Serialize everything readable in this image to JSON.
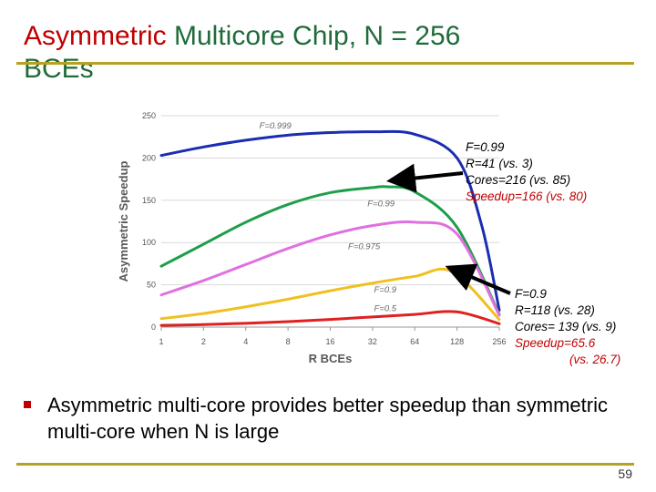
{
  "slide": {
    "title_part1": "Asymmetric",
    "title_part2": " Multicore Chip, N = 256",
    "title_part3": "BCEs",
    "bullet": "Asymmetric multi-core provides better speedup than symmetric multi-core when N is large",
    "page_number": "59"
  },
  "annotations": {
    "f099": {
      "line1": "F=0.99",
      "line2": "R=41 (vs. 3)",
      "line3": "Cores=216 (vs. 85)",
      "line4": "Speedup=166 (vs. 80)"
    },
    "f09": {
      "line1": "F=0.9",
      "line2": "R=118 (vs. 28)",
      "line3": "Cores= 139 (vs. 9)",
      "line4": "Speedup=65.6",
      "line5": "(vs. 26.7)"
    }
  },
  "colors": {
    "title_accent": "#c00000",
    "title_main": "#1f6b3a",
    "rule": "#b8a020"
  },
  "chart_data": {
    "type": "line",
    "ylabel": "Asymmetric Speedup",
    "xlabel": "R BCEs",
    "x_scale": "log2",
    "x": [
      1,
      2,
      4,
      8,
      16,
      32,
      64,
      128,
      256
    ],
    "xticks": [
      "1",
      "2",
      "4",
      "8",
      "16",
      "32",
      "64",
      "128",
      "256"
    ],
    "ylim": [
      0,
      250
    ],
    "yticks": [
      "0",
      "50",
      "100",
      "150",
      "200",
      "250"
    ],
    "grid": true,
    "series": [
      {
        "name": "F=0.999",
        "color": "#1a2db0",
        "values": [
          [
            1,
            203
          ],
          [
            2,
            213
          ],
          [
            4,
            221
          ],
          [
            8,
            227
          ],
          [
            16,
            230
          ],
          [
            32,
            231
          ],
          [
            64,
            228
          ],
          [
            128,
            200
          ],
          [
            192,
            120
          ],
          [
            256,
            20
          ]
        ]
      },
      {
        "name": "F=0.99",
        "color": "#1e9e4a",
        "values": [
          [
            1,
            72
          ],
          [
            2,
            98
          ],
          [
            4,
            124
          ],
          [
            8,
            145
          ],
          [
            16,
            159
          ],
          [
            32,
            165
          ],
          [
            41,
            166
          ],
          [
            64,
            160
          ],
          [
            128,
            118
          ],
          [
            256,
            15
          ]
        ]
      },
      {
        "name": "F=0.975",
        "color": "#e070e0",
        "values": [
          [
            1,
            38
          ],
          [
            2,
            55
          ],
          [
            4,
            74
          ],
          [
            8,
            93
          ],
          [
            16,
            109
          ],
          [
            32,
            120
          ],
          [
            64,
            124
          ],
          [
            128,
            110
          ],
          [
            256,
            14
          ]
        ]
      },
      {
        "name": "F=0.9",
        "color": "#f0c020",
        "values": [
          [
            1,
            10
          ],
          [
            2,
            16
          ],
          [
            4,
            24
          ],
          [
            8,
            33
          ],
          [
            16,
            43
          ],
          [
            32,
            52
          ],
          [
            64,
            60
          ],
          [
            118,
            65.6
          ],
          [
            256,
            9
          ]
        ]
      },
      {
        "name": "F=0.5",
        "color": "#e02020",
        "values": [
          [
            1,
            2
          ],
          [
            2,
            3
          ],
          [
            4,
            4.5
          ],
          [
            8,
            6.5
          ],
          [
            16,
            9
          ],
          [
            32,
            12
          ],
          [
            64,
            15
          ],
          [
            128,
            18
          ],
          [
            256,
            4
          ]
        ]
      }
    ],
    "series_label_anchor": [
      [
        2.7,
        235
      ],
      [
        5.2,
        143
      ],
      [
        4.8,
        92
      ],
      [
        5.3,
        41
      ],
      [
        5.3,
        19
      ]
    ]
  }
}
